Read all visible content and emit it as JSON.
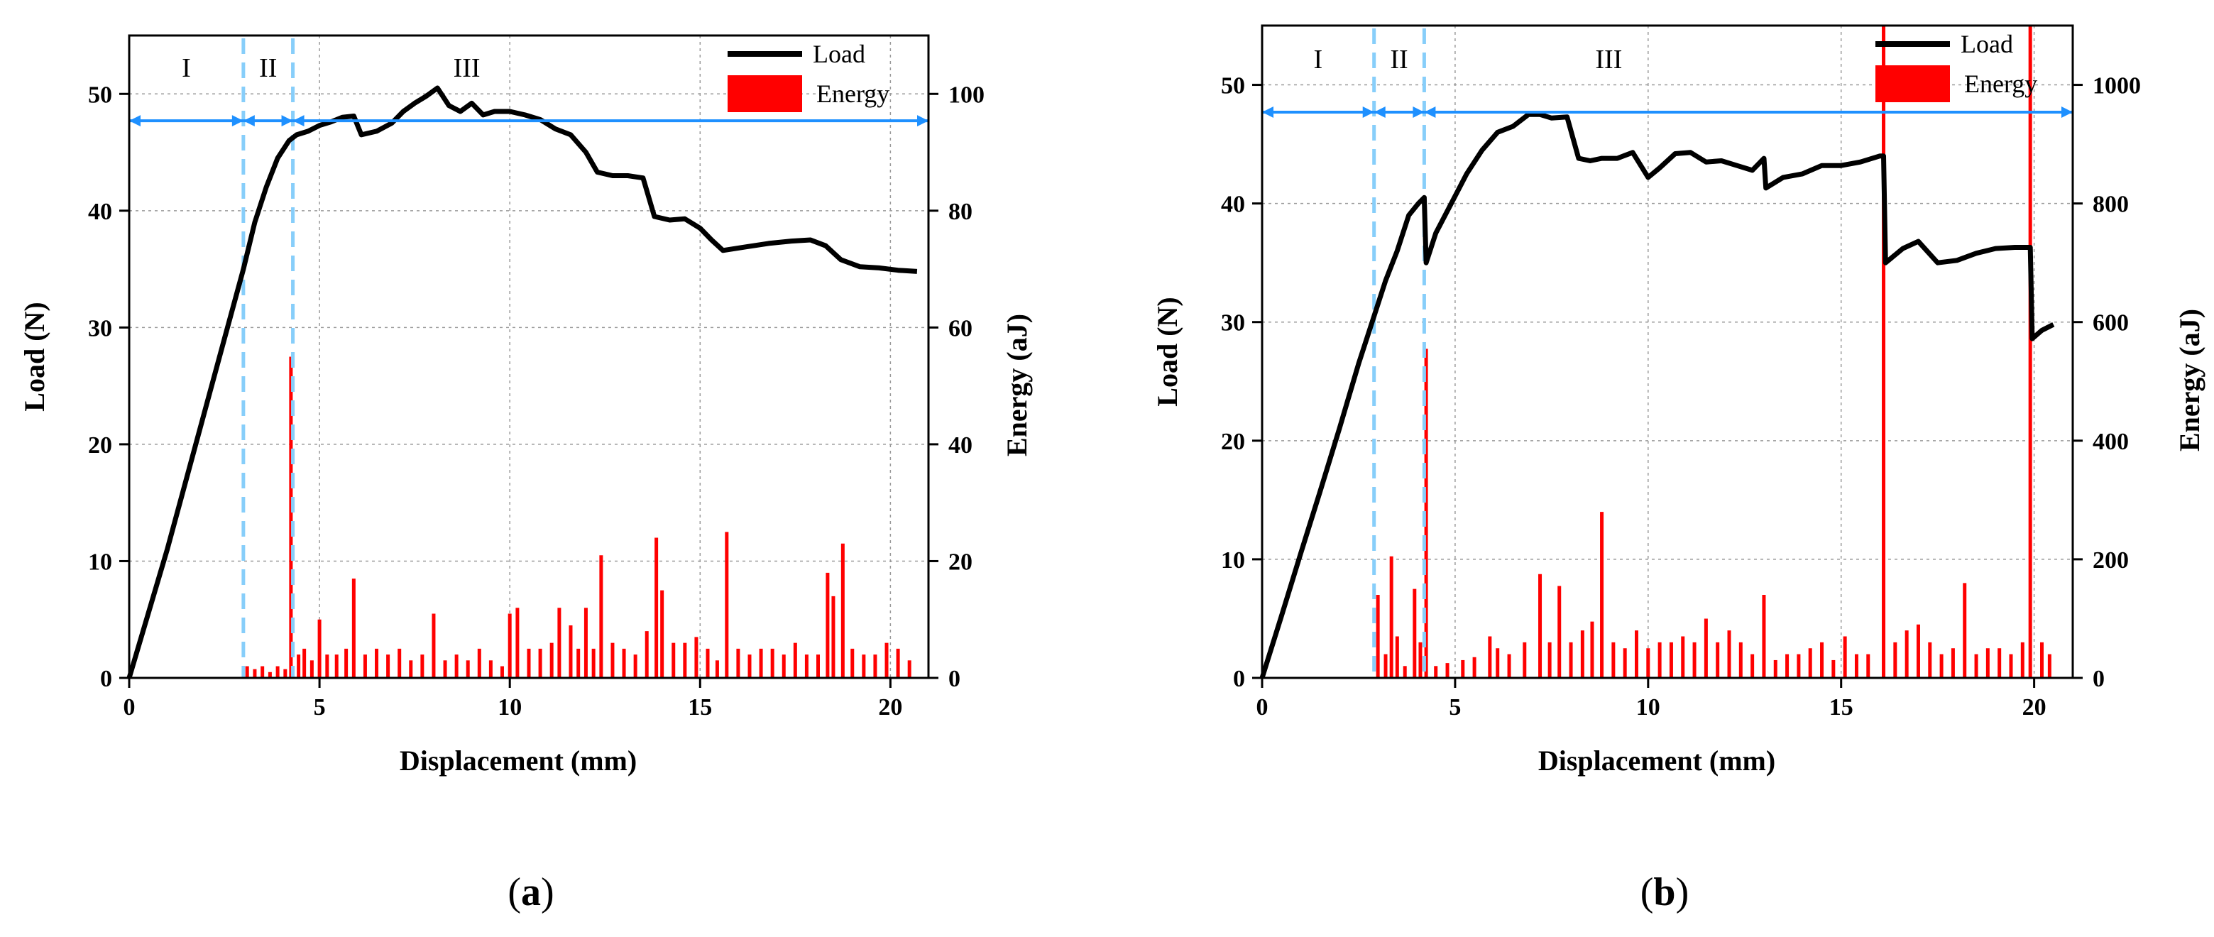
{
  "figure": {
    "panels": [
      "a",
      "b"
    ]
  },
  "chart_data": [
    {
      "type": "line",
      "panel_label": "(a)",
      "caption_open": "(",
      "caption_letter": "a",
      "caption_close": ")",
      "xlabel": "Displacement (mm)",
      "ylabel_left": "Load (N)",
      "ylabel_right": "Energy (aJ)",
      "xlim": [
        0,
        21
      ],
      "ylim_left": [
        0,
        55
      ],
      "ylim_right": [
        0,
        110
      ],
      "x_ticks": [
        0,
        5,
        10,
        15,
        20
      ],
      "x_tick_labels": [
        "0",
        "5",
        "10",
        "15",
        "20"
      ],
      "y_left_ticks": [
        0,
        10,
        20,
        30,
        40,
        50
      ],
      "y_left_tick_labels": [
        "0",
        "10",
        "20",
        "30",
        "40",
        "50"
      ],
      "y_right_ticks": [
        0,
        20,
        40,
        60,
        80,
        100
      ],
      "y_right_tick_labels": [
        "0",
        "20",
        "40",
        "60",
        "80",
        "100"
      ],
      "grid": true,
      "legend": {
        "position": "top-right",
        "entries": [
          "Load",
          "Energy"
        ]
      },
      "regions": [
        {
          "label": "I",
          "x_start": 0,
          "x_end": 3.0
        },
        {
          "label": "II",
          "x_start": 3.0,
          "x_end": 4.3
        },
        {
          "label": "III",
          "x_start": 4.3,
          "x_end": 21
        }
      ],
      "region_arrow_load": 47.7,
      "divider_lines_x": [
        3.0,
        4.3
      ],
      "series": [
        {
          "name": "Load",
          "axis": "left",
          "color": "#000000",
          "x": [
            0,
            0.5,
            1.0,
            1.5,
            2.0,
            2.5,
            3.0,
            3.3,
            3.6,
            3.9,
            4.2,
            4.4,
            4.7,
            5.0,
            5.3,
            5.6,
            5.9,
            6.1,
            6.5,
            6.9,
            7.2,
            7.5,
            7.8,
            8.1,
            8.4,
            8.7,
            9.0,
            9.3,
            9.6,
            10.0,
            10.4,
            10.8,
            11.2,
            11.6,
            12.0,
            12.3,
            12.7,
            13.1,
            13.5,
            13.8,
            14.2,
            14.6,
            15.0,
            15.3,
            15.6,
            16.2,
            16.8,
            17.4,
            17.9,
            18.3,
            18.7,
            19.2,
            19.7,
            20.2,
            20.7
          ],
          "values": [
            0,
            5.5,
            11,
            17,
            23,
            29,
            35,
            39,
            42,
            44.5,
            46,
            46.5,
            46.8,
            47.3,
            47.6,
            48,
            48.1,
            46.5,
            46.8,
            47.5,
            48.5,
            49.2,
            49.8,
            50.5,
            49,
            48.5,
            49.2,
            48.2,
            48.5,
            48.5,
            48.2,
            47.8,
            47,
            46.5,
            45,
            43.3,
            43,
            43,
            42.8,
            39.5,
            39.2,
            39.3,
            38.5,
            37.5,
            36.6,
            36.9,
            37.2,
            37.4,
            37.5,
            37,
            35.8,
            35.2,
            35.1,
            34.9,
            34.8
          ]
        },
        {
          "name": "Energy",
          "axis": "right",
          "color": "#ff0000",
          "type": "bar",
          "x": [
            3.1,
            3.3,
            3.5,
            3.7,
            3.9,
            4.1,
            4.25,
            4.45,
            4.6,
            4.8,
            5.0,
            5.2,
            5.45,
            5.7,
            5.9,
            6.2,
            6.5,
            6.8,
            7.1,
            7.4,
            7.7,
            8.0,
            8.3,
            8.6,
            8.9,
            9.2,
            9.5,
            9.8,
            10.0,
            10.2,
            10.5,
            10.8,
            11.1,
            11.3,
            11.6,
            11.8,
            12.0,
            12.2,
            12.4,
            12.7,
            13.0,
            13.3,
            13.6,
            13.85,
            14.0,
            14.3,
            14.6,
            14.9,
            15.2,
            15.45,
            15.7,
            16.0,
            16.3,
            16.6,
            16.9,
            17.2,
            17.5,
            17.8,
            18.1,
            18.35,
            18.5,
            18.75,
            19.0,
            19.3,
            19.6,
            19.9,
            20.2,
            20.5
          ],
          "values": [
            2,
            1.5,
            2,
            1,
            2,
            1.5,
            55,
            4,
            5,
            3,
            10,
            4,
            4,
            5,
            17,
            4,
            5,
            4,
            5,
            3,
            4,
            11,
            3,
            4,
            3,
            5,
            3,
            2,
            11,
            12,
            5,
            5,
            6,
            12,
            9,
            5,
            12,
            5,
            21,
            6,
            5,
            4,
            8,
            24,
            15,
            6,
            6,
            7,
            5,
            3,
            25,
            5,
            4,
            5,
            5,
            4,
            6,
            4,
            4,
            18,
            14,
            23,
            5,
            4,
            4,
            6,
            5,
            3
          ]
        }
      ]
    },
    {
      "type": "line",
      "panel_label": "(b)",
      "caption_open": "(",
      "caption_letter": "b",
      "caption_close": ")",
      "xlabel": "Displacement (mm)",
      "ylabel_left": "Load (N)",
      "ylabel_right": "Energy (aJ)",
      "xlim": [
        0,
        21
      ],
      "ylim_left": [
        0,
        55
      ],
      "ylim_right": [
        0,
        1100
      ],
      "x_ticks": [
        0,
        5,
        10,
        15,
        20
      ],
      "x_tick_labels": [
        "0",
        "5",
        "10",
        "15",
        "20"
      ],
      "y_left_ticks": [
        0,
        10,
        20,
        30,
        40,
        50
      ],
      "y_left_tick_labels": [
        "0",
        "10",
        "20",
        "30",
        "40",
        "50"
      ],
      "y_right_ticks": [
        0,
        200,
        400,
        600,
        800,
        1000
      ],
      "y_right_tick_labels": [
        "0",
        "200",
        "400",
        "600",
        "800",
        "1000"
      ],
      "grid": true,
      "legend": {
        "position": "top-right",
        "entries": [
          "Load",
          "Energy"
        ]
      },
      "regions": [
        {
          "label": "I",
          "x_start": 0,
          "x_end": 2.9
        },
        {
          "label": "II",
          "x_start": 2.9,
          "x_end": 4.2
        },
        {
          "label": "III",
          "x_start": 4.2,
          "x_end": 21
        }
      ],
      "region_arrow_load": 47.7,
      "divider_lines_x": [
        2.9,
        4.2
      ],
      "series": [
        {
          "name": "Load",
          "axis": "left",
          "color": "#000000",
          "x": [
            0,
            0.5,
            1.0,
            1.5,
            2.0,
            2.5,
            2.9,
            3.2,
            3.5,
            3.8,
            4.05,
            4.2,
            4.25,
            4.5,
            4.9,
            5.3,
            5.7,
            6.1,
            6.5,
            6.9,
            7.2,
            7.5,
            7.9,
            8.2,
            8.5,
            8.8,
            9.2,
            9.6,
            10.0,
            10.3,
            10.7,
            11.1,
            11.5,
            11.9,
            12.3,
            12.7,
            13.0,
            13.05,
            13.5,
            14.0,
            14.5,
            15.0,
            15.5,
            16.0,
            16.1,
            16.15,
            16.6,
            17.0,
            17.5,
            18.0,
            18.5,
            19.0,
            19.5,
            19.9,
            19.95,
            20.2,
            20.5
          ],
          "values": [
            0,
            5.2,
            10.5,
            15.7,
            21,
            26.5,
            30.5,
            33.5,
            36,
            39,
            40,
            40.5,
            35,
            37.5,
            40,
            42.5,
            44.5,
            46,
            46.5,
            47.5,
            47.5,
            47.2,
            47.3,
            43.8,
            43.6,
            43.8,
            43.8,
            44.3,
            42.2,
            43,
            44.2,
            44.3,
            43.5,
            43.6,
            43.2,
            42.8,
            43.8,
            41.3,
            42.2,
            42.5,
            43.2,
            43.2,
            43.5,
            44,
            44,
            35,
            36.2,
            36.8,
            35,
            35.2,
            35.8,
            36.2,
            36.3,
            36.3,
            28.6,
            29.3,
            29.8
          ]
        },
        {
          "name": "Energy",
          "axis": "right",
          "color": "#ff0000",
          "type": "bar",
          "x": [
            3.0,
            3.2,
            3.35,
            3.5,
            3.7,
            3.95,
            4.1,
            4.25,
            4.5,
            4.8,
            5.2,
            5.5,
            5.9,
            6.1,
            6.4,
            6.8,
            7.2,
            7.45,
            7.7,
            8.0,
            8.3,
            8.55,
            8.8,
            9.1,
            9.4,
            9.7,
            10.0,
            10.3,
            10.6,
            10.9,
            11.2,
            11.5,
            11.8,
            12.1,
            12.4,
            12.7,
            13.0,
            13.3,
            13.6,
            13.9,
            14.2,
            14.5,
            14.8,
            15.1,
            15.4,
            15.7,
            16.1,
            16.4,
            16.7,
            17.0,
            17.3,
            17.6,
            17.9,
            18.2,
            18.5,
            18.8,
            19.1,
            19.4,
            19.7,
            19.9,
            20.2,
            20.4
          ],
          "values": [
            140,
            40,
            205,
            70,
            20,
            150,
            60,
            555,
            20,
            25,
            30,
            35,
            70,
            50,
            40,
            60,
            175,
            60,
            155,
            60,
            80,
            95,
            280,
            60,
            50,
            80,
            50,
            60,
            60,
            70,
            60,
            100,
            60,
            80,
            60,
            40,
            140,
            30,
            40,
            40,
            50,
            60,
            30,
            70,
            40,
            40,
            1100,
            60,
            80,
            90,
            60,
            40,
            50,
            160,
            40,
            50,
            50,
            40,
            60,
            1100,
            60,
            40
          ]
        }
      ]
    }
  ]
}
